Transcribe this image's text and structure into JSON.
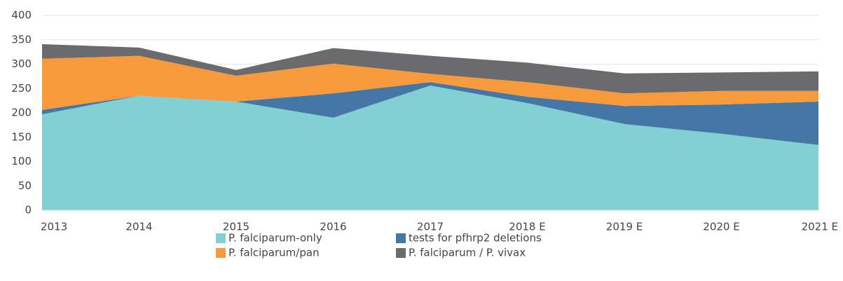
{
  "chart_data": {
    "type": "stacked_area",
    "categories": [
      "2013",
      "2014",
      "2015",
      "2016",
      "2017",
      "2018 E",
      "2019 E",
      "2020 E",
      "2021 E"
    ],
    "series": [
      {
        "name": "P. falciparum-only",
        "color": "#82cfd4",
        "values": [
          197,
          235,
          223,
          190,
          256,
          220,
          177,
          157,
          134
        ]
      },
      {
        "name": "tests for pfhrp2 deletions",
        "color": "#4577a6",
        "values": [
          9,
          0,
          0,
          50,
          7,
          13,
          37,
          60,
          89
        ]
      },
      {
        "name": "P. falciparum/pan",
        "color": "#f79a3c",
        "values": [
          105,
          82,
          53,
          61,
          17,
          30,
          26,
          28,
          22
        ]
      },
      {
        "name": "P. falciparum / P. vivax",
        "color": "#6b6b6e",
        "values": [
          30,
          17,
          12,
          32,
          37,
          40,
          41,
          38,
          40
        ]
      }
    ],
    "ylim": [
      0,
      400
    ],
    "yticks": [
      0,
      50,
      100,
      150,
      200,
      250,
      300,
      350,
      400
    ],
    "grid": true
  }
}
